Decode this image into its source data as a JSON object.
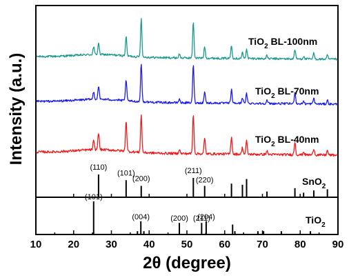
{
  "chart_data": {
    "type": "line",
    "title": "",
    "xlabel": "2θ (degree)",
    "ylabel": "Intensity (a.u.)",
    "xlim": [
      10,
      90
    ],
    "xticks": [
      10,
      20,
      30,
      40,
      50,
      60,
      70,
      80,
      90
    ],
    "series": [
      {
        "name": "TiO2 BL-100nm",
        "color": "#1a9a8e",
        "baseline": 0.15,
        "peaks": [
          [
            25.3,
            0.2
          ],
          [
            26.6,
            0.3
          ],
          [
            33.9,
            0.5
          ],
          [
            37.9,
            1.0
          ],
          [
            48.0,
            0.1
          ],
          [
            51.7,
            0.95
          ],
          [
            54.7,
            0.3
          ],
          [
            61.8,
            0.35
          ],
          [
            64.7,
            0.15
          ],
          [
            65.8,
            0.25
          ],
          [
            71.2,
            0.08
          ],
          [
            78.6,
            0.25
          ],
          [
            80.9,
            0.07
          ],
          [
            83.6,
            0.15
          ],
          [
            87.2,
            0.1
          ]
        ]
      },
      {
        "name": "TiO2 BL-70nm",
        "color": "#1a1af0",
        "baseline": 0.15,
        "peaks": [
          [
            25.3,
            0.2
          ],
          [
            26.6,
            0.35
          ],
          [
            33.9,
            0.55
          ],
          [
            37.9,
            1.0
          ],
          [
            48.0,
            0.1
          ],
          [
            51.7,
            1.0
          ],
          [
            54.7,
            0.3
          ],
          [
            61.8,
            0.35
          ],
          [
            64.7,
            0.15
          ],
          [
            65.8,
            0.25
          ],
          [
            71.2,
            0.08
          ],
          [
            78.6,
            0.3
          ],
          [
            80.9,
            0.07
          ],
          [
            83.6,
            0.15
          ],
          [
            87.2,
            0.1
          ]
        ]
      },
      {
        "name": "TiO2 BL-40nm",
        "color": "#f01a1a",
        "baseline": 0.15,
        "peaks": [
          [
            25.3,
            0.2
          ],
          [
            26.6,
            0.4
          ],
          [
            33.9,
            0.7
          ],
          [
            37.9,
            0.85
          ],
          [
            48.0,
            0.1
          ],
          [
            51.7,
            0.9
          ],
          [
            54.7,
            0.35
          ],
          [
            61.8,
            0.4
          ],
          [
            64.7,
            0.15
          ],
          [
            65.8,
            0.3
          ],
          [
            71.2,
            0.08
          ],
          [
            78.6,
            0.3
          ],
          [
            80.9,
            0.07
          ],
          [
            83.6,
            0.15
          ],
          [
            87.2,
            0.1
          ]
        ]
      }
    ],
    "references": [
      {
        "name": "SnO2",
        "lines": [
          [
            26.6,
            1.0
          ],
          [
            33.9,
            0.75
          ],
          [
            37.9,
            0.5
          ],
          [
            51.7,
            0.85
          ],
          [
            54.7,
            0.5
          ],
          [
            61.8,
            0.6
          ],
          [
            64.7,
            0.55
          ],
          [
            65.8,
            0.8
          ],
          [
            71.2,
            0.25
          ],
          [
            78.6,
            0.4
          ],
          [
            80.9,
            0.2
          ],
          [
            83.6,
            0.3
          ],
          [
            87.2,
            0.35
          ]
        ],
        "labels": [
          {
            "text": "(110)",
            "x": 26.6
          },
          {
            "text": "(101)",
            "x": 33.9
          },
          {
            "text": "(200)",
            "x": 37.9
          },
          {
            "text": "(211)",
            "x": 51.7
          },
          {
            "text": "(220)",
            "x": 54.7
          }
        ]
      },
      {
        "name": "TiO2",
        "lines": [
          [
            25.3,
            1.0
          ],
          [
            36.9,
            0.1
          ],
          [
            37.8,
            0.4
          ],
          [
            38.6,
            0.1
          ],
          [
            48.0,
            0.35
          ],
          [
            53.9,
            0.35
          ],
          [
            55.1,
            0.4
          ],
          [
            62.1,
            0.3
          ],
          [
            62.7,
            0.1
          ],
          [
            68.8,
            0.1
          ],
          [
            70.3,
            0.1
          ],
          [
            75.0,
            0.1
          ],
          [
            82.7,
            0.1
          ]
        ],
        "labels": [
          {
            "text": "(101)",
            "x": 25.3
          },
          {
            "text": "(004)",
            "x": 37.8
          },
          {
            "text": "(200)",
            "x": 48.0
          },
          {
            "text": "(211)",
            "x": 53.9
          },
          {
            "text": "(204)",
            "x": 55.1
          }
        ]
      }
    ]
  }
}
